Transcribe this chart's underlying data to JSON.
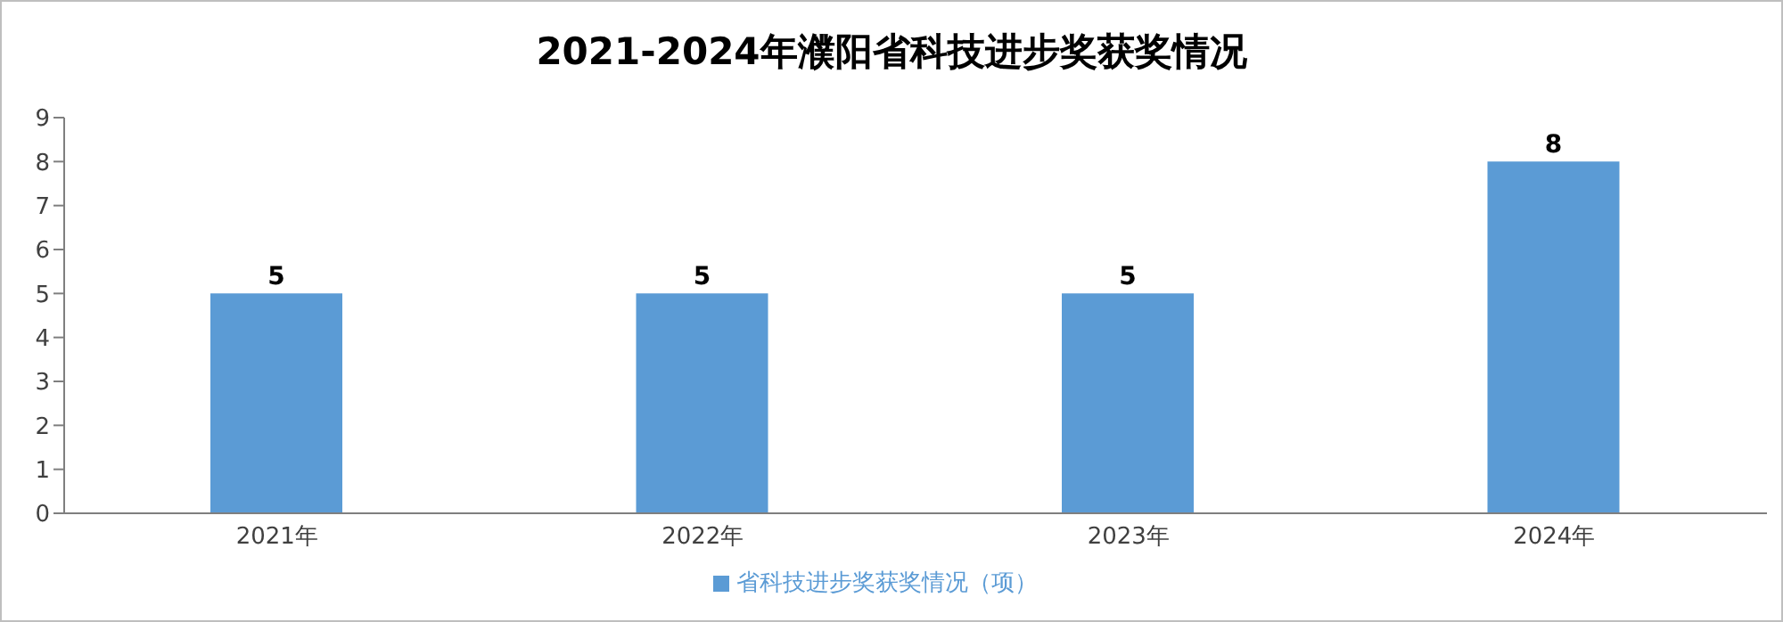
{
  "chart_data": {
    "type": "bar",
    "title": "2021-2024年濮阳省科技进步奖获奖情况",
    "categories": [
      "2021年",
      "2022年",
      "2023年",
      "2024年"
    ],
    "series": [
      {
        "name": "省科技进步奖获奖情况（项）",
        "color": "#5b9bd5",
        "values": [
          5,
          5,
          5,
          8
        ]
      }
    ],
    "ylim": [
      0,
      9
    ],
    "yticks": [
      0,
      1,
      2,
      3,
      4,
      5,
      6,
      7,
      8,
      9
    ],
    "data_labels": true,
    "legend": "bottom"
  }
}
